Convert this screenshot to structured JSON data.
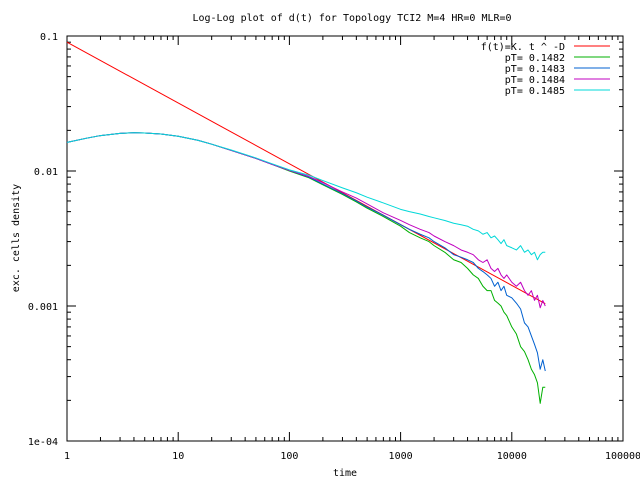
{
  "chart_data": {
    "type": "line",
    "title": "Log-Log plot of d(t) for Topology TCI2 M=4 HR=0 MLR=0",
    "xlabel": "time",
    "ylabel": "exc. cells density",
    "xscale": "log",
    "yscale": "log",
    "xlim": [
      1,
      100000
    ],
    "ylim": [
      0.0001,
      0.1
    ],
    "grid": false,
    "legend_position": "top-right",
    "x_ticks": [
      {
        "value": 1,
        "label": "1"
      },
      {
        "value": 10,
        "label": "10"
      },
      {
        "value": 100,
        "label": "100"
      },
      {
        "value": 1000,
        "label": "1000"
      },
      {
        "value": 10000,
        "label": "10000"
      },
      {
        "value": 100000,
        "label": "100000"
      }
    ],
    "y_ticks": [
      {
        "value": 0.1,
        "label": "0.1"
      },
      {
        "value": 0.01,
        "label": "0.01"
      },
      {
        "value": 0.001,
        "label": "0.001"
      },
      {
        "value": 0.0001,
        "label": "1e-04"
      }
    ],
    "series": [
      {
        "name": "f(t)=K. t ^ -D",
        "color": "#ff0000",
        "x": [
          1,
          20000
        ],
        "y": [
          0.09,
          0.00104
        ]
      },
      {
        "name": "pT= 0.1482",
        "color": "#00b000",
        "x": [
          1,
          1.5,
          2,
          3,
          4,
          5,
          7,
          10,
          15,
          20,
          30,
          50,
          70,
          100,
          150,
          200,
          300,
          400,
          500,
          700,
          1000,
          1200,
          1500,
          1800,
          2000,
          2500,
          3000,
          3500,
          4000,
          4500,
          5000,
          5500,
          6000,
          6500,
          7000,
          7500,
          8000,
          8500,
          9000,
          10000,
          11000,
          12000,
          13000,
          14000,
          15000,
          16000,
          17000,
          18000,
          19000,
          20000
        ],
        "y": [
          0.0163,
          0.0175,
          0.0183,
          0.019,
          0.0192,
          0.0191,
          0.0188,
          0.0181,
          0.0169,
          0.0158,
          0.0142,
          0.0124,
          0.0112,
          0.01,
          0.0089,
          0.0079,
          0.0067,
          0.0059,
          0.0053,
          0.0046,
          0.0039,
          0.0035,
          0.0032,
          0.003,
          0.0028,
          0.0025,
          0.0022,
          0.0021,
          0.0019,
          0.0017,
          0.0016,
          0.0014,
          0.0013,
          0.0013,
          0.0011,
          0.00105,
          0.001,
          0.0009,
          0.00085,
          0.0007,
          0.00062,
          0.0005,
          0.00046,
          0.0004,
          0.00034,
          0.00031,
          0.00027,
          0.00019,
          0.00025,
          0.00025
        ]
      },
      {
        "name": "pT= 0.1483",
        "color": "#0060d0",
        "x": [
          1,
          1.5,
          2,
          3,
          4,
          5,
          7,
          10,
          15,
          20,
          30,
          50,
          70,
          100,
          150,
          200,
          300,
          400,
          500,
          700,
          1000,
          1200,
          1500,
          1800,
          2000,
          2500,
          3000,
          3500,
          4000,
          4500,
          5000,
          5500,
          6000,
          6500,
          7000,
          7500,
          8000,
          8500,
          9000,
          10000,
          11000,
          12000,
          13000,
          14000,
          15000,
          16000,
          17000,
          18000,
          19000,
          20000
        ],
        "y": [
          0.0163,
          0.0175,
          0.0183,
          0.019,
          0.0192,
          0.0191,
          0.0188,
          0.0181,
          0.0169,
          0.0158,
          0.0142,
          0.0124,
          0.0112,
          0.0101,
          0.009,
          0.008,
          0.0068,
          0.006,
          0.0054,
          0.0047,
          0.004,
          0.0037,
          0.0034,
          0.0032,
          0.003,
          0.0027,
          0.0024,
          0.0023,
          0.0022,
          0.0021,
          0.0019,
          0.0018,
          0.0017,
          0.0016,
          0.0014,
          0.0015,
          0.0013,
          0.0014,
          0.0012,
          0.00115,
          0.00105,
          0.00095,
          0.00075,
          0.0007,
          0.0006,
          0.00052,
          0.00045,
          0.00034,
          0.0004,
          0.00033
        ]
      },
      {
        "name": "pT= 0.1484",
        "color": "#c000c0",
        "x": [
          1,
          1.5,
          2,
          3,
          4,
          5,
          7,
          10,
          15,
          20,
          30,
          50,
          70,
          100,
          150,
          200,
          300,
          400,
          500,
          700,
          1000,
          1200,
          1500,
          1800,
          2000,
          2500,
          3000,
          3500,
          4000,
          4500,
          5000,
          5500,
          6000,
          6500,
          7000,
          7500,
          8000,
          8500,
          9000,
          10000,
          11000,
          12000,
          13000,
          14000,
          15000,
          16000,
          17000,
          18000,
          19000,
          20000
        ],
        "y": [
          0.0163,
          0.0175,
          0.0183,
          0.019,
          0.0192,
          0.0191,
          0.0188,
          0.0181,
          0.0169,
          0.0158,
          0.0142,
          0.0124,
          0.0112,
          0.0101,
          0.0091,
          0.0082,
          0.007,
          0.0063,
          0.0057,
          0.0049,
          0.0043,
          0.004,
          0.0037,
          0.0035,
          0.0033,
          0.003,
          0.0028,
          0.0026,
          0.0025,
          0.0024,
          0.0022,
          0.0021,
          0.0022,
          0.0019,
          0.0018,
          0.0019,
          0.0017,
          0.0016,
          0.0017,
          0.0015,
          0.0014,
          0.0015,
          0.0013,
          0.0012,
          0.0013,
          0.0011,
          0.0012,
          0.00097,
          0.0011,
          0.001
        ]
      },
      {
        "name": "pT= 0.1485",
        "color": "#00d8d8",
        "x": [
          1,
          1.5,
          2,
          3,
          4,
          5,
          7,
          10,
          15,
          20,
          30,
          50,
          70,
          100,
          150,
          200,
          300,
          400,
          500,
          700,
          1000,
          1200,
          1500,
          1800,
          2000,
          2500,
          3000,
          3500,
          4000,
          4500,
          5000,
          5500,
          6000,
          6500,
          7000,
          7500,
          8000,
          8500,
          9000,
          10000,
          11000,
          12000,
          13000,
          14000,
          15000,
          16000,
          17000,
          18000,
          19000,
          20000
        ],
        "y": [
          0.0163,
          0.0175,
          0.0183,
          0.019,
          0.0192,
          0.0191,
          0.0188,
          0.0181,
          0.0169,
          0.0158,
          0.0143,
          0.0125,
          0.0113,
          0.0102,
          0.0093,
          0.0085,
          0.0075,
          0.0069,
          0.0064,
          0.0058,
          0.0052,
          0.005,
          0.0048,
          0.0046,
          0.0045,
          0.0043,
          0.0041,
          0.004,
          0.0039,
          0.0037,
          0.0036,
          0.0034,
          0.0035,
          0.0032,
          0.0033,
          0.0031,
          0.0029,
          0.0031,
          0.0028,
          0.0027,
          0.0026,
          0.0028,
          0.0025,
          0.0026,
          0.0024,
          0.0025,
          0.0022,
          0.0024,
          0.0025,
          0.0025
        ]
      }
    ]
  }
}
